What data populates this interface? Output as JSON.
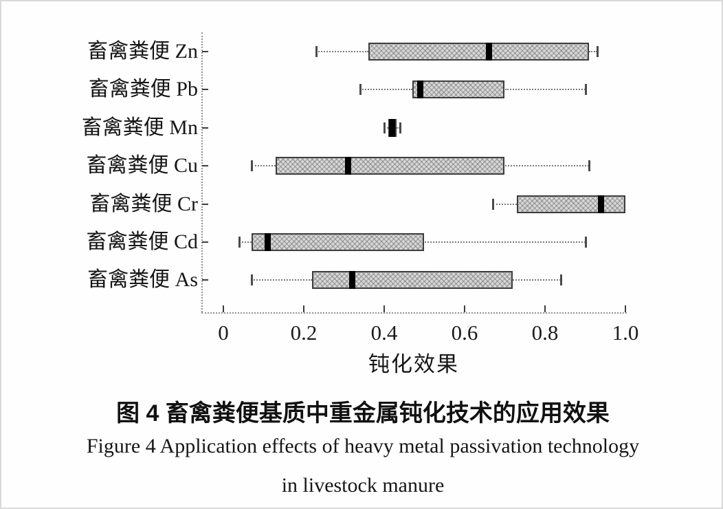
{
  "page": {
    "background": "#fefefe",
    "border_color": "#d9d9d9",
    "text_color": "#1c1c1c"
  },
  "chart_data": {
    "type": "boxplot",
    "orientation": "horizontal",
    "title_zh": "图 4 畜禽粪便基质中重金属钝化技术的应用效果",
    "title_en_line1": "Figure 4  Application effects of heavy metal passivation technology",
    "title_en_line2": "in livestock manure",
    "xlabel": "钝化效果",
    "ylabel": "",
    "xlim": [
      -0.053,
      1.0
    ],
    "grid": false,
    "legend": "none",
    "x_ticks": [
      0,
      0.2,
      0.4,
      0.6,
      0.8,
      1.0
    ],
    "x_tick_labels": [
      "0",
      "0.2",
      "0.4",
      "0.6",
      "0.8",
      "1.0"
    ],
    "categories": [
      "畜禽粪便 Zn",
      "畜禽粪便 Pb",
      "畜禽粪便 Mn",
      "畜禽粪便 Cu",
      "畜禽粪便 Cr",
      "畜禽粪便 Cd",
      "畜禽粪便 As"
    ],
    "series": [
      {
        "name": "畜禽粪便 Zn",
        "whisker_low": 0.23,
        "q1": 0.36,
        "median": 0.66,
        "q3": 0.91,
        "whisker_high": 0.93
      },
      {
        "name": "畜禽粪便 Pb",
        "whisker_low": 0.34,
        "q1": 0.47,
        "median": 0.49,
        "q3": 0.7,
        "whisker_high": 0.9
      },
      {
        "name": "畜禽粪便 Mn",
        "whisker_low": 0.4,
        "q1": 0.41,
        "median": 0.42,
        "q3": 0.43,
        "whisker_high": 0.44
      },
      {
        "name": "畜禽粪便 Cu",
        "whisker_low": 0.07,
        "q1": 0.13,
        "median": 0.31,
        "q3": 0.7,
        "whisker_high": 0.91
      },
      {
        "name": "畜禽粪便 Cr",
        "whisker_low": 0.67,
        "q1": 0.73,
        "median": 0.94,
        "q3": 1.0,
        "whisker_high": 1.0
      },
      {
        "name": "畜禽粪便 Cd",
        "whisker_low": 0.04,
        "q1": 0.07,
        "median": 0.11,
        "q3": 0.5,
        "whisker_high": 0.9
      },
      {
        "name": "畜禽粪便 As",
        "whisker_low": 0.07,
        "q1": 0.22,
        "median": 0.32,
        "q3": 0.72,
        "whisker_high": 0.84
      }
    ],
    "colors": {
      "box_fill": "#d8d8d8",
      "box_border": "#3d3d3d",
      "median": "#000000",
      "whisker": "#787878",
      "axis": "#8f8f8f",
      "tick": "#3c3c3c"
    }
  }
}
